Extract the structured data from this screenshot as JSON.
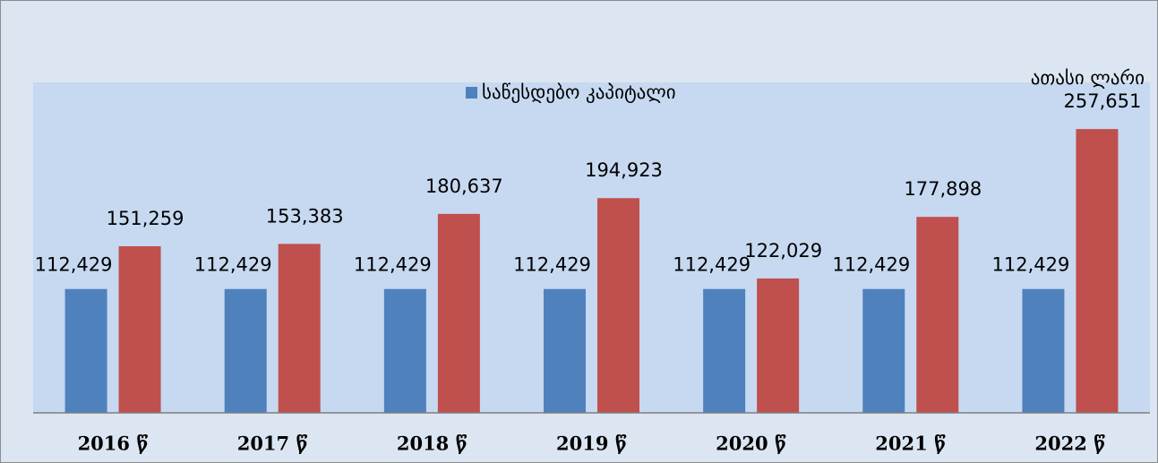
{
  "chart_data": {
    "type": "bar",
    "unit_label": "ათასი ლარი",
    "categories": [
      "2016 წ",
      "2017 წ",
      "2018 წ",
      "2019 წ",
      "2020 წ",
      "2021 წ",
      "2022 წ"
    ],
    "series": [
      {
        "name": "საწესდებო კაპიტალი",
        "color": "#4f81bd",
        "values": [
          112429,
          112429,
          112429,
          112429,
          112429,
          112429,
          112429
        ],
        "value_labels": [
          "112,429",
          "112,429",
          "112,429",
          "112,429",
          "112,429",
          "112,429",
          "112,429"
        ]
      },
      {
        "color": "#c0504d",
        "values": [
          151259,
          153383,
          180637,
          194923,
          122029,
          177898,
          257651
        ],
        "value_labels": [
          "151,259",
          "153,383",
          "180,637",
          "194,923",
          "122,029",
          "177,898",
          "257,651"
        ]
      }
    ],
    "ylim": [
      0,
      300000
    ],
    "legend": "top"
  }
}
